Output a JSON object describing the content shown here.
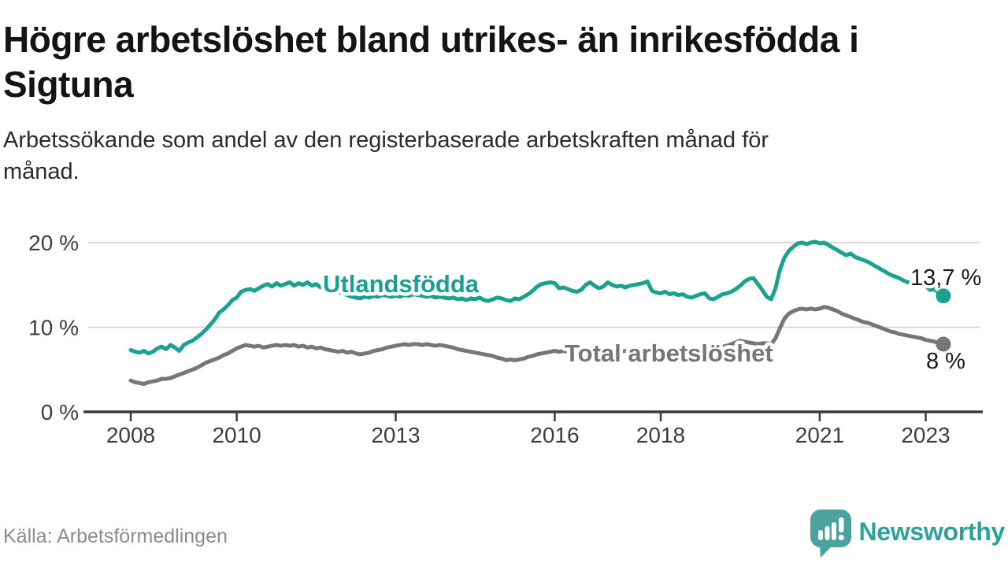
{
  "title_lines": [
    "Högre arbetslöshet bland utrikes- än inrikesfödda i",
    "Sigtuna"
  ],
  "subtitle_lines": [
    "Arbetssökande som andel av den registerbaserade arbetskraften månad för",
    "månad."
  ],
  "footer": {
    "source": "Källa: Arbetsförmedlingen",
    "brand": "Newsworthy"
  },
  "colors": {
    "teal_line": "#1ba18f",
    "gray_line": "#767676",
    "axis_text": "#3d3d3d",
    "gridline": "#d9d9d9",
    "axis_line": "#3a3a3a",
    "value_label": "#1a1a1a",
    "logo_icon": "#4ba3a0",
    "logo_text": "#2ba39b"
  },
  "chart_data": {
    "type": "line",
    "title": "Högre arbetslöshet bland utrikes- än inrikesfödda i Sigtuna",
    "subtitle": "Arbetssökande som andel av den registerbaserade arbetskraften månad för månad.",
    "x_unit": "monthly",
    "x_start_year": 2008,
    "x_end": "2023-05",
    "grid": true,
    "legend": "inline-labels",
    "ylim": [
      0,
      21.5
    ],
    "y_axis": {
      "ticks": [
        {
          "label": "20 %",
          "value": 20
        },
        {
          "label": "10 %",
          "value": 10
        },
        {
          "label": "0 %",
          "value": 0
        }
      ]
    },
    "x_axis": {
      "ticks": [
        {
          "label": "2008",
          "year": 2008
        },
        {
          "label": "2010",
          "year": 2010
        },
        {
          "label": "2013",
          "year": 2013
        },
        {
          "label": "2016",
          "year": 2016
        },
        {
          "label": "2018",
          "year": 2018
        },
        {
          "label": "2021",
          "year": 2021
        },
        {
          "label": "2023",
          "year": 2023
        }
      ]
    },
    "series": [
      {
        "name": "Utlandsfödda",
        "color": "#1ba18f",
        "end_label": "13,7 %",
        "end_value": 13.7,
        "values": [
          7.3,
          7.1,
          7.0,
          7.2,
          6.9,
          7.1,
          7.5,
          7.7,
          7.4,
          7.9,
          7.6,
          7.2,
          7.9,
          8.2,
          8.4,
          8.8,
          9.2,
          9.7,
          10.3,
          10.9,
          11.7,
          12.1,
          12.6,
          13.2,
          13.5,
          14.2,
          14.4,
          14.5,
          14.3,
          14.6,
          14.9,
          15.1,
          14.8,
          15.2,
          14.9,
          15.1,
          15.3,
          14.9,
          15.2,
          15.0,
          15.3,
          14.9,
          15.1,
          14.7,
          14.8,
          14.4,
          14.6,
          14.2,
          14.0,
          13.8,
          13.6,
          13.5,
          13.4,
          13.6,
          13.5,
          13.7,
          13.6,
          13.8,
          13.7,
          13.6,
          13.7,
          13.6,
          13.8,
          13.7,
          13.9,
          13.8,
          13.7,
          13.6,
          13.7,
          13.5,
          13.6,
          13.5,
          13.4,
          13.5,
          13.3,
          13.4,
          13.2,
          13.4,
          13.3,
          13.5,
          13.2,
          13.1,
          13.3,
          13.5,
          13.4,
          13.2,
          13.1,
          13.4,
          13.3,
          13.6,
          13.9,
          14.3,
          14.8,
          15.1,
          15.2,
          15.3,
          15.2,
          14.6,
          14.7,
          14.5,
          14.3,
          14.2,
          14.4,
          15.0,
          15.3,
          14.9,
          14.6,
          14.8,
          15.3,
          15.0,
          14.8,
          14.9,
          14.7,
          14.9,
          15.0,
          15.1,
          15.2,
          15.4,
          14.3,
          14.1,
          14.0,
          14.2,
          13.9,
          14.0,
          13.8,
          13.9,
          13.6,
          13.5,
          13.7,
          13.9,
          14.0,
          13.4,
          13.3,
          13.6,
          13.9,
          14.0,
          14.2,
          14.5,
          14.9,
          15.4,
          15.7,
          15.8,
          15.1,
          14.4,
          13.6,
          13.3,
          14.6,
          16.8,
          18.2,
          19.0,
          19.5,
          19.9,
          20.0,
          19.8,
          20.0,
          20.1,
          19.9,
          20.0,
          19.7,
          19.4,
          19.1,
          18.8,
          18.5,
          18.7,
          18.3,
          18.1,
          17.9,
          17.7,
          17.4,
          17.1,
          16.8,
          16.5,
          16.2,
          16.0,
          15.8,
          15.5,
          15.3,
          15.2,
          15.1,
          15.0,
          14.9,
          14.4,
          14.5,
          14.0,
          13.7
        ]
      },
      {
        "name": "Total arbetslöshet",
        "color": "#767676",
        "end_label": "8 %",
        "end_value": 8.0,
        "values": [
          3.7,
          3.5,
          3.4,
          3.3,
          3.5,
          3.6,
          3.7,
          3.9,
          3.9,
          4.0,
          4.2,
          4.4,
          4.6,
          4.8,
          5.0,
          5.2,
          5.5,
          5.8,
          6.0,
          6.2,
          6.4,
          6.7,
          6.9,
          7.2,
          7.5,
          7.7,
          7.9,
          7.8,
          7.7,
          7.8,
          7.6,
          7.7,
          7.8,
          7.9,
          7.8,
          7.9,
          7.8,
          7.9,
          7.7,
          7.8,
          7.6,
          7.7,
          7.5,
          7.6,
          7.4,
          7.3,
          7.2,
          7.1,
          7.2,
          7.0,
          7.1,
          6.9,
          6.8,
          6.9,
          7.0,
          7.2,
          7.3,
          7.4,
          7.6,
          7.7,
          7.8,
          7.9,
          8.0,
          7.9,
          8.0,
          8.0,
          7.9,
          8.0,
          7.9,
          7.8,
          7.9,
          7.8,
          7.7,
          7.6,
          7.4,
          7.3,
          7.2,
          7.1,
          7.0,
          6.9,
          6.8,
          6.7,
          6.6,
          6.4,
          6.3,
          6.1,
          6.2,
          6.1,
          6.2,
          6.3,
          6.5,
          6.6,
          6.8,
          6.9,
          7.0,
          7.1,
          7.2,
          7.1,
          7.2,
          7.1,
          7.0,
          7.1,
          7.2,
          7.1,
          7.0,
          7.1,
          7.2,
          7.1,
          7.2,
          7.1,
          7.0,
          7.1,
          7.2,
          7.1,
          7.2,
          7.1,
          7.2,
          7.3,
          7.2,
          7.3,
          7.2,
          7.1,
          7.2,
          7.1,
          7.2,
          7.3,
          7.2,
          7.3,
          7.4,
          7.3,
          7.4,
          7.5,
          7.4,
          7.5,
          7.7,
          7.8,
          8.0,
          8.2,
          8.4,
          8.3,
          8.2,
          8.1,
          8.0,
          8.1,
          8.1,
          8.0,
          8.7,
          9.9,
          11.0,
          11.6,
          11.9,
          12.1,
          12.2,
          12.1,
          12.2,
          12.1,
          12.2,
          12.4,
          12.3,
          12.1,
          11.9,
          11.6,
          11.4,
          11.2,
          11.0,
          10.8,
          10.6,
          10.5,
          10.3,
          10.1,
          9.9,
          9.7,
          9.5,
          9.4,
          9.2,
          9.1,
          9.0,
          8.9,
          8.8,
          8.7,
          8.5,
          8.4,
          8.3,
          8.1,
          8.0
        ]
      }
    ]
  }
}
